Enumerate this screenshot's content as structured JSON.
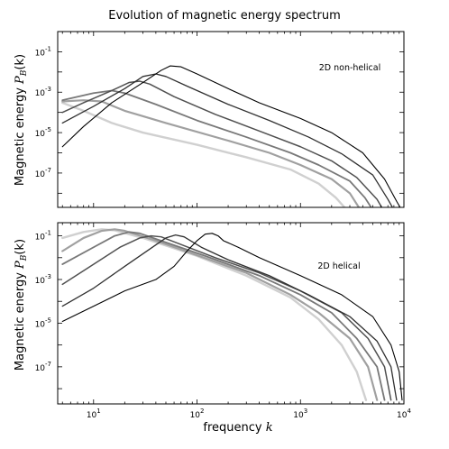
{
  "figure": {
    "title": "Evolution of magnetic energy spectrum",
    "xlabel_text": "frequency ",
    "xlabel_var": "k",
    "ylabel_text": "Magnetic energy ",
    "ylabel_var": "P",
    "ylabel_sub": "B",
    "ylabel_arg": "(k)"
  },
  "chart_data": [
    {
      "type": "line",
      "title": "Evolution of magnetic energy spectrum",
      "annotation": "2D non-helical",
      "xlabel": "frequency k",
      "ylabel": "Magnetic energy P_B(k)",
      "xscale": "log",
      "yscale": "log",
      "xlim": [
        4.5,
        10000
      ],
      "ylim": [
        2e-09,
        1
      ],
      "xticks": [
        {
          "base": "10",
          "exp": "1"
        },
        {
          "base": "10",
          "exp": "2"
        },
        {
          "base": "10",
          "exp": "3"
        },
        {
          "base": "10",
          "exp": "4"
        }
      ],
      "yticks": [
        {
          "base": "10",
          "exp": "-7"
        },
        {
          "base": "10",
          "exp": "-5"
        },
        {
          "base": "10",
          "exp": "-3"
        },
        {
          "base": "10",
          "exp": "-1"
        }
      ],
      "show_xtick_labels": false,
      "series": [
        {
          "color": "#d0d0d0",
          "width": 2.4,
          "points": [
            [
              5,
              0.0003
            ],
            [
              8,
              0.00012
            ],
            [
              15,
              3e-05
            ],
            [
              30,
              1e-05
            ],
            [
              100,
              2.5e-06
            ],
            [
              300,
              6e-07
            ],
            [
              800,
              1.5e-07
            ],
            [
              1500,
              3e-08
            ],
            [
              2200,
              6e-09
            ],
            [
              2800,
              1.5e-09
            ]
          ]
        },
        {
          "color": "#a0a0a0",
          "width": 2.2,
          "points": [
            [
              5,
              0.00035
            ],
            [
              8,
              0.0004
            ],
            [
              12,
              0.00035
            ],
            [
              20,
              0.00012
            ],
            [
              50,
              3e-05
            ],
            [
              200,
              4e-06
            ],
            [
              500,
              1e-06
            ],
            [
              1000,
              2.5e-07
            ],
            [
              2000,
              5e-08
            ],
            [
              3000,
              1e-08
            ],
            [
              3800,
              1.5e-09
            ]
          ]
        },
        {
          "color": "#787878",
          "width": 1.8,
          "points": [
            [
              5,
              0.0004
            ],
            [
              10,
              0.0009
            ],
            [
              15,
              0.0012
            ],
            [
              20,
              0.0009
            ],
            [
              40,
              0.00025
            ],
            [
              100,
              4e-05
            ],
            [
              300,
              6e-06
            ],
            [
              800,
              1e-06
            ],
            [
              1500,
              2.5e-07
            ],
            [
              3000,
              4e-08
            ],
            [
              4200,
              6e-09
            ],
            [
              5000,
              1.5e-09
            ]
          ]
        },
        {
          "color": "#505050",
          "width": 1.5,
          "points": [
            [
              5,
              0.0001
            ],
            [
              8,
              0.0003
            ],
            [
              15,
              0.0012
            ],
            [
              22,
              0.003
            ],
            [
              28,
              0.0035
            ],
            [
              35,
              0.0025
            ],
            [
              60,
              0.0006
            ],
            [
              150,
              8e-05
            ],
            [
              400,
              1.2e-05
            ],
            [
              1000,
              2e-06
            ],
            [
              2000,
              4e-07
            ],
            [
              3500,
              6e-08
            ],
            [
              5500,
              5e-09
            ],
            [
              6300,
              1.5e-09
            ]
          ]
        },
        {
          "color": "#303030",
          "width": 1.3,
          "points": [
            [
              5,
              3e-05
            ],
            [
              10,
              0.0002
            ],
            [
              20,
              0.0015
            ],
            [
              30,
              0.006
            ],
            [
              40,
              0.008
            ],
            [
              50,
              0.006
            ],
            [
              80,
              0.002
            ],
            [
              200,
              0.00025
            ],
            [
              500,
              4e-05
            ],
            [
              1200,
              6e-06
            ],
            [
              2500,
              9e-07
            ],
            [
              5000,
              8e-08
            ],
            [
              7000,
              5e-09
            ],
            [
              8000,
              1.5e-09
            ]
          ]
        },
        {
          "color": "#000000",
          "width": 1.1,
          "points": [
            [
              5,
              2e-06
            ],
            [
              8,
              2e-05
            ],
            [
              15,
              0.0003
            ],
            [
              30,
              0.003
            ],
            [
              45,
              0.012
            ],
            [
              55,
              0.02
            ],
            [
              70,
              0.018
            ],
            [
              100,
              0.008
            ],
            [
              200,
              0.0015
            ],
            [
              400,
              0.0003
            ],
            [
              1000,
              5e-05
            ],
            [
              2000,
              1e-05
            ],
            [
              4000,
              1e-06
            ],
            [
              6500,
              5e-08
            ],
            [
              8500,
              4e-09
            ],
            [
              9500,
              1.5e-09
            ]
          ]
        }
      ]
    },
    {
      "type": "line",
      "annotation": "2D helical",
      "xlabel": "frequency k",
      "ylabel": "Magnetic energy P_B(k)",
      "xscale": "log",
      "yscale": "log",
      "xlim": [
        4.5,
        10000
      ],
      "ylim": [
        2e-09,
        0.4
      ],
      "xticks": [
        {
          "base": "10",
          "exp": "1"
        },
        {
          "base": "10",
          "exp": "2"
        },
        {
          "base": "10",
          "exp": "3"
        },
        {
          "base": "10",
          "exp": "4"
        }
      ],
      "yticks": [
        {
          "base": "10",
          "exp": "-7"
        },
        {
          "base": "10",
          "exp": "-5"
        },
        {
          "base": "10",
          "exp": "-3"
        },
        {
          "base": "10",
          "exp": "-1"
        }
      ],
      "show_xtick_labels": true,
      "series": [
        {
          "color": "#d0d0d0",
          "width": 2.4,
          "points": [
            [
              5,
              0.08
            ],
            [
              8,
              0.15
            ],
            [
              12,
              0.2
            ],
            [
              16,
              0.18
            ],
            [
              30,
              0.08
            ],
            [
              100,
              0.012
            ],
            [
              300,
              0.0015
            ],
            [
              800,
              0.00015
            ],
            [
              1500,
              1.5e-05
            ],
            [
              2500,
              1e-06
            ],
            [
              3500,
              6e-08
            ],
            [
              4300,
              3e-09
            ]
          ]
        },
        {
          "color": "#a0a0a0",
          "width": 2.2,
          "points": [
            [
              5,
              0.02
            ],
            [
              8,
              0.08
            ],
            [
              12,
              0.17
            ],
            [
              16,
              0.2
            ],
            [
              20,
              0.17
            ],
            [
              40,
              0.06
            ],
            [
              100,
              0.013
            ],
            [
              300,
              0.002
            ],
            [
              800,
              0.0002
            ],
            [
              1500,
              3e-05
            ],
            [
              3000,
              2e-06
            ],
            [
              4500,
              1e-07
            ],
            [
              5500,
              3e-09
            ]
          ]
        },
        {
          "color": "#787878",
          "width": 1.8,
          "points": [
            [
              5,
              0.005
            ],
            [
              10,
              0.03
            ],
            [
              16,
              0.1
            ],
            [
              22,
              0.15
            ],
            [
              28,
              0.13
            ],
            [
              50,
              0.05
            ],
            [
              120,
              0.012
            ],
            [
              400,
              0.0015
            ],
            [
              1000,
              0.0002
            ],
            [
              2000,
              3e-05
            ],
            [
              3500,
              2e-06
            ],
            [
              5500,
              1e-07
            ],
            [
              6500,
              3e-09
            ]
          ]
        },
        {
          "color": "#505050",
          "width": 1.5,
          "points": [
            [
              5,
              0.0006
            ],
            [
              10,
              0.005
            ],
            [
              18,
              0.03
            ],
            [
              28,
              0.08
            ],
            [
              36,
              0.1
            ],
            [
              45,
              0.09
            ],
            [
              70,
              0.04
            ],
            [
              150,
              0.01
            ],
            [
              400,
              0.002
            ],
            [
              1000,
              0.0003
            ],
            [
              2500,
              3e-05
            ],
            [
              4500,
              2e-06
            ],
            [
              6500,
              1e-07
            ],
            [
              7500,
              3e-09
            ]
          ]
        },
        {
          "color": "#303030",
          "width": 1.3,
          "points": [
            [
              5,
              6e-05
            ],
            [
              10,
              0.0004
            ],
            [
              20,
              0.004
            ],
            [
              35,
              0.025
            ],
            [
              50,
              0.08
            ],
            [
              62,
              0.11
            ],
            [
              75,
              0.09
            ],
            [
              110,
              0.03
            ],
            [
              200,
              0.008
            ],
            [
              500,
              0.0015
            ],
            [
              1200,
              0.0002
            ],
            [
              3000,
              2e-05
            ],
            [
              5500,
              1.5e-06
            ],
            [
              7500,
              1e-07
            ],
            [
              8500,
              3e-09
            ]
          ]
        },
        {
          "color": "#000000",
          "width": 1.1,
          "points": [
            [
              5,
              1.2e-05
            ],
            [
              10,
              6e-05
            ],
            [
              20,
              0.0003
            ],
            [
              40,
              0.001
            ],
            [
              60,
              0.004
            ],
            [
              80,
              0.02
            ],
            [
              100,
              0.06
            ],
            [
              120,
              0.12
            ],
            [
              140,
              0.13
            ],
            [
              160,
              0.1
            ],
            [
              180,
              0.06
            ],
            [
              250,
              0.03
            ],
            [
              400,
              0.01
            ],
            [
              1000,
              0.0015
            ],
            [
              2500,
              0.0002
            ],
            [
              5000,
              2e-05
            ],
            [
              7500,
              1e-06
            ],
            [
              9000,
              6e-08
            ],
            [
              9600,
              3e-09
            ]
          ]
        }
      ]
    }
  ]
}
